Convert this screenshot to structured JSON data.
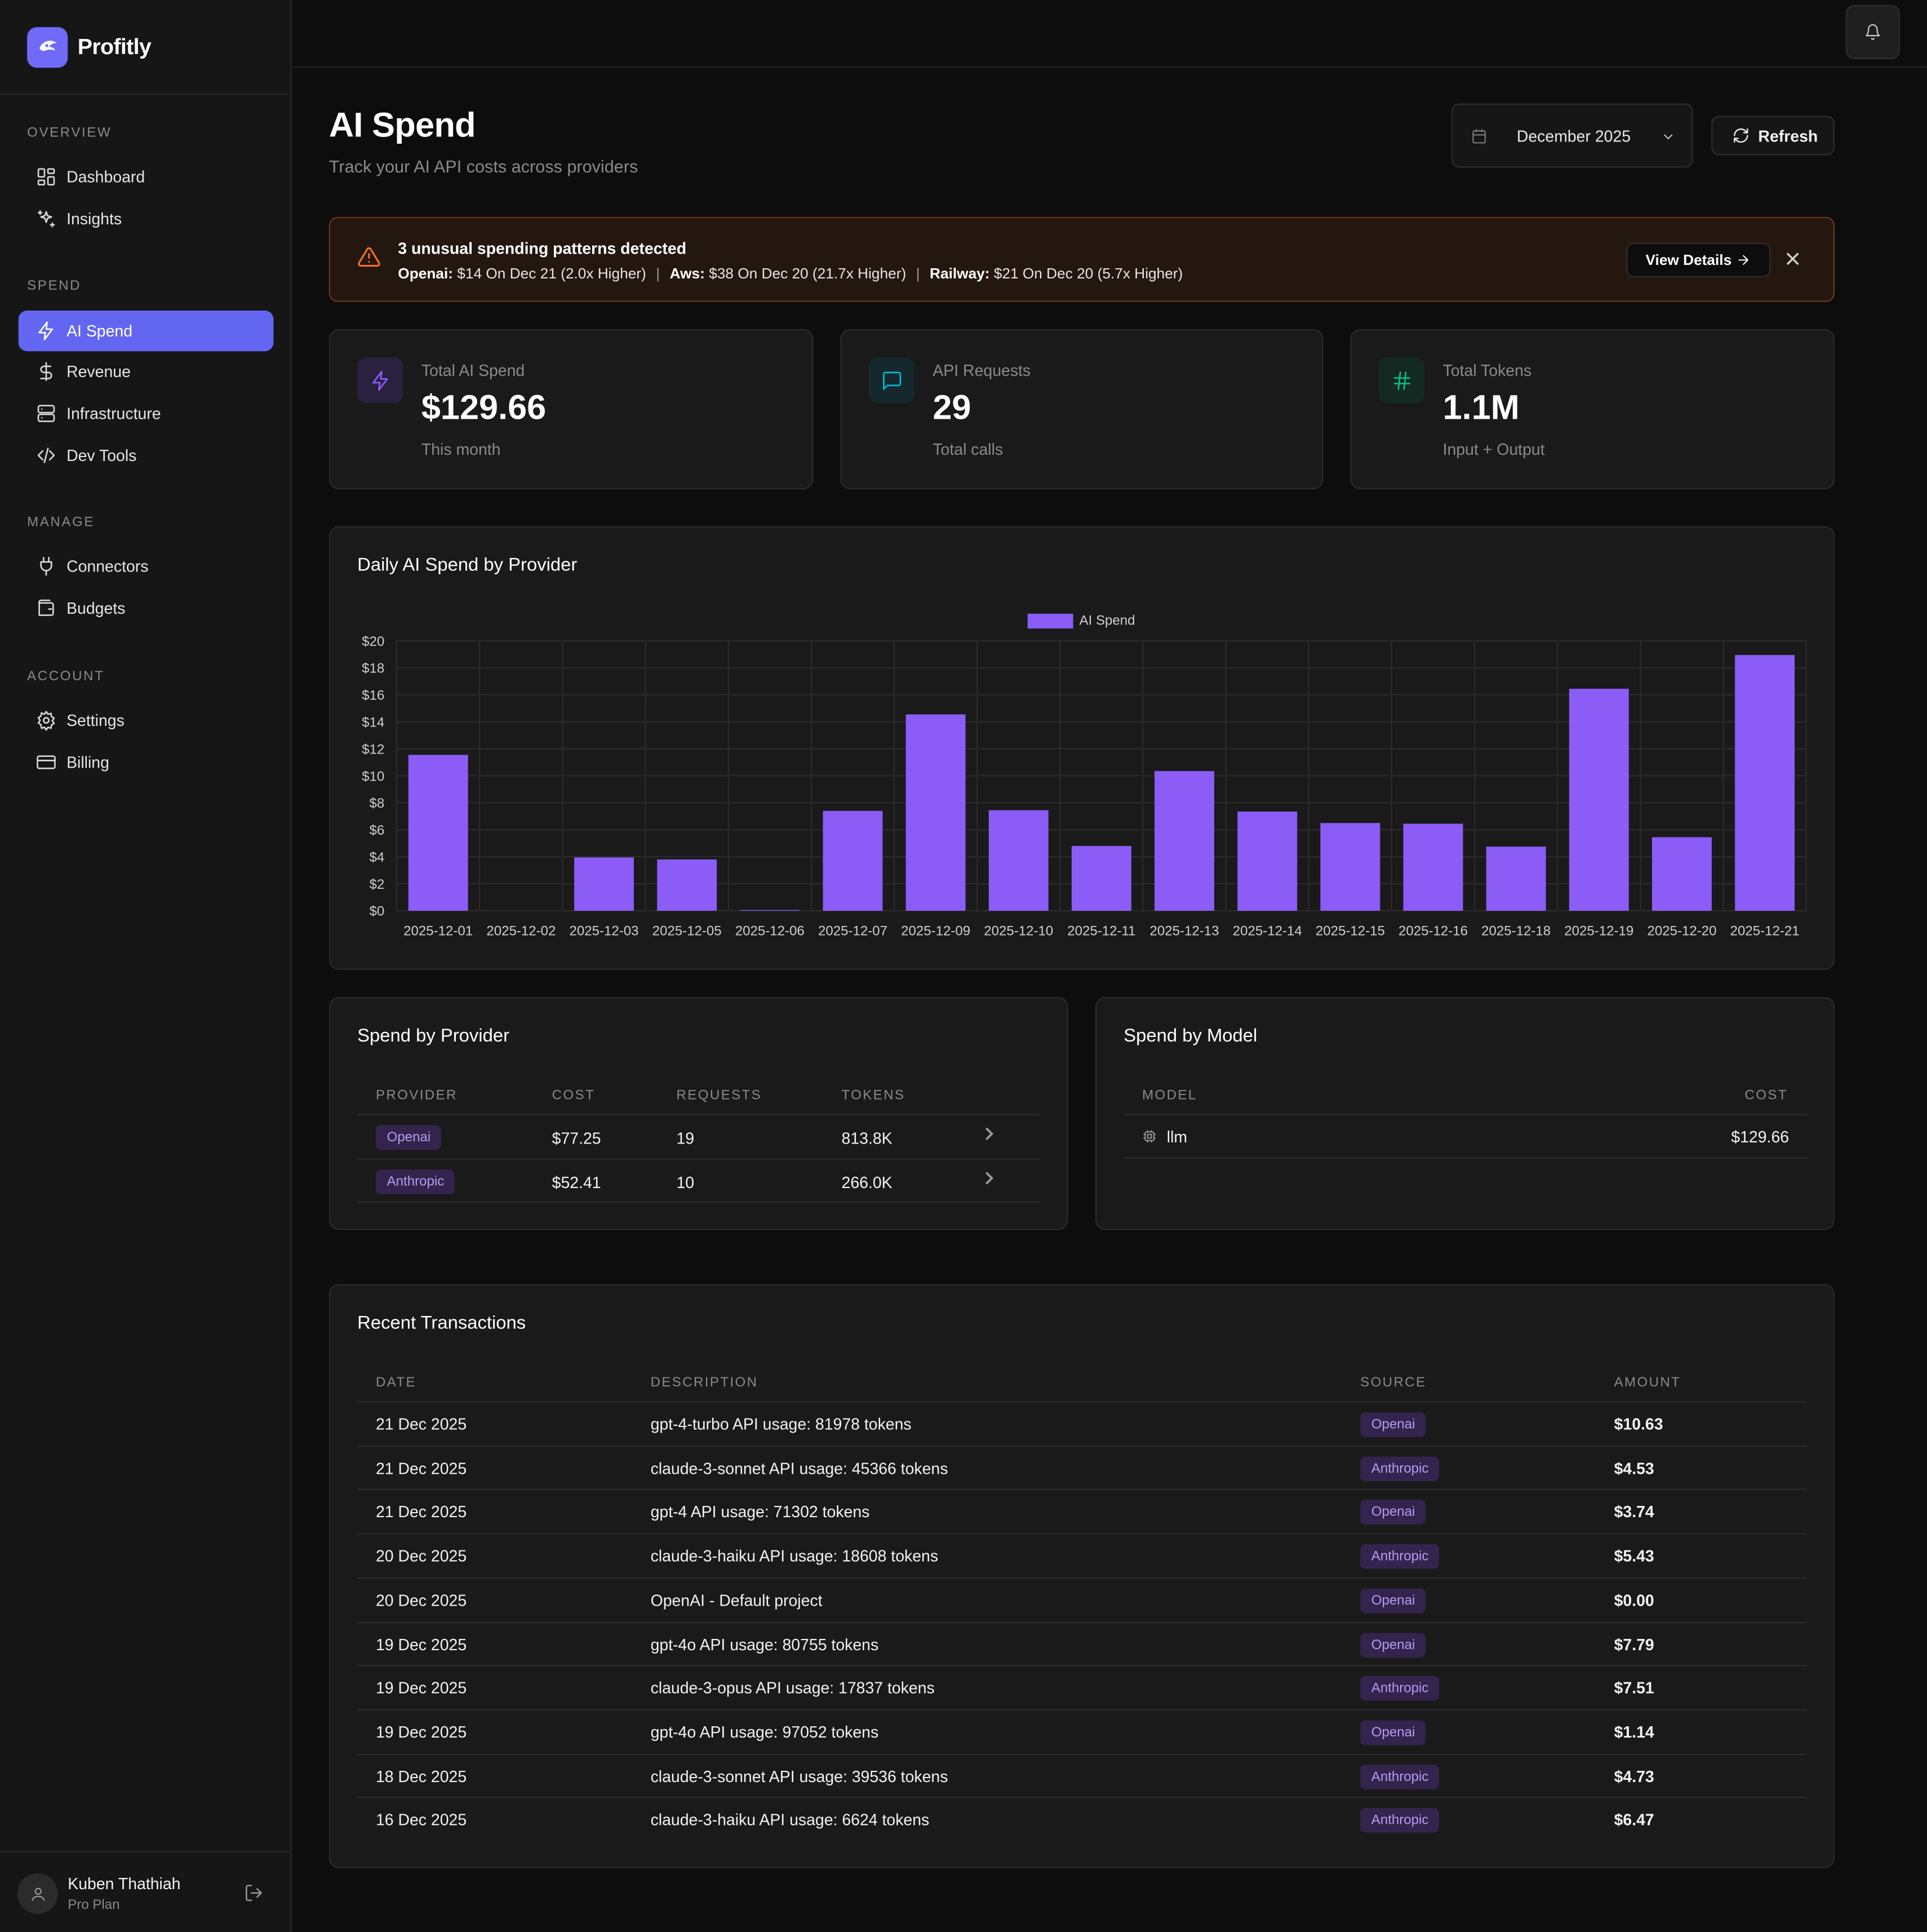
{
  "app": {
    "name": "Profitly"
  },
  "sidebar": {
    "sections": [
      {
        "label": "OVERVIEW",
        "items": [
          {
            "label": "Dashboard",
            "icon": "dashboard-icon"
          },
          {
            "label": "Insights",
            "icon": "sparkles-icon"
          }
        ]
      },
      {
        "label": "SPEND",
        "items": [
          {
            "label": "AI Spend",
            "icon": "zap-icon",
            "active": true
          },
          {
            "label": "Revenue",
            "icon": "dollar-icon"
          },
          {
            "label": "Infrastructure",
            "icon": "server-icon"
          },
          {
            "label": "Dev Tools",
            "icon": "code-icon"
          }
        ]
      },
      {
        "label": "MANAGE",
        "items": [
          {
            "label": "Connectors",
            "icon": "plug-icon"
          },
          {
            "label": "Budgets",
            "icon": "wallet-icon"
          }
        ]
      },
      {
        "label": "ACCOUNT",
        "items": [
          {
            "label": "Settings",
            "icon": "gear-icon"
          },
          {
            "label": "Billing",
            "icon": "credit-card-icon"
          }
        ]
      }
    ],
    "user": {
      "name": "Kuben Thathiah",
      "plan": "Pro Plan"
    }
  },
  "header": {
    "title": "AI Spend",
    "subtitle": "Track your AI API costs across providers",
    "month_selector": "December 2025",
    "refresh_label": "Refresh"
  },
  "alert": {
    "title": "3 unusual spending patterns detected",
    "items": [
      {
        "provider": "Openai:",
        "detail": "$14 On Dec 21 (2.0x Higher)"
      },
      {
        "provider": "Aws:",
        "detail": "$38 On Dec 20 (21.7x Higher)"
      },
      {
        "provider": "Railway:",
        "detail": "$21 On Dec 20 (5.7x Higher)"
      }
    ],
    "separator": "|",
    "action_label": "View Details",
    "accent": "#f97316"
  },
  "stats": [
    {
      "label": "Total AI Spend",
      "value": "$129.66",
      "note": "This month",
      "icon": "zap-icon",
      "color": "#8b5cf6"
    },
    {
      "label": "API Requests",
      "value": "29",
      "note": "Total calls",
      "icon": "message-icon",
      "color": "#06b6d4"
    },
    {
      "label": "Total Tokens",
      "value": "1.1M",
      "note": "Input + Output",
      "icon": "hash-icon",
      "color": "#10b981"
    }
  ],
  "daily_chart": {
    "title": "Daily AI Spend by Provider",
    "bar_color": "#8b5cf6"
  },
  "chart_data": {
    "type": "bar",
    "categories": [
      "2025-12-01",
      "2025-12-02",
      "2025-12-03",
      "2025-12-05",
      "2025-12-06",
      "2025-12-07",
      "2025-12-09",
      "2025-12-10",
      "2025-12-11",
      "2025-12-13",
      "2025-12-14",
      "2025-12-15",
      "2025-12-16",
      "2025-12-18",
      "2025-12-19",
      "2025-12-20",
      "2025-12-21"
    ],
    "series": [
      {
        "name": "AI Spend",
        "values": [
          11.55,
          0,
          3.95,
          3.8,
          0.05,
          7.4,
          14.55,
          7.45,
          4.8,
          10.35,
          7.35,
          6.5,
          6.45,
          4.75,
          16.45,
          5.45,
          18.95
        ]
      }
    ],
    "ylim": [
      0,
      20
    ],
    "yticks": [
      "$0",
      "$2",
      "$4",
      "$6",
      "$8",
      "$10",
      "$12",
      "$14",
      "$16",
      "$18",
      "$20"
    ],
    "grid": true,
    "legend": "top-center"
  },
  "provider_table": {
    "title": "Spend by Provider",
    "columns": [
      "PROVIDER",
      "COST",
      "REQUESTS",
      "TOKENS"
    ],
    "rows": [
      {
        "provider": "Openai",
        "cost": "$77.25",
        "requests": "19",
        "tokens": "813.8K"
      },
      {
        "provider": "Anthropic",
        "cost": "$52.41",
        "requests": "10",
        "tokens": "266.0K"
      }
    ]
  },
  "model_table": {
    "title": "Spend by Model",
    "columns": [
      "MODEL",
      "COST"
    ],
    "rows": [
      {
        "model": "llm",
        "cost": "$129.66"
      }
    ]
  },
  "transactions": {
    "title": "Recent Transactions",
    "columns": [
      "DATE",
      "DESCRIPTION",
      "SOURCE",
      "AMOUNT"
    ],
    "rows": [
      {
        "date": "21 Dec 2025",
        "description": "gpt-4-turbo API usage: 81978 tokens",
        "source": "Openai",
        "amount": "$10.63"
      },
      {
        "date": "21 Dec 2025",
        "description": "claude-3-sonnet API usage: 45366 tokens",
        "source": "Anthropic",
        "amount": "$4.53"
      },
      {
        "date": "21 Dec 2025",
        "description": "gpt-4 API usage: 71302 tokens",
        "source": "Openai",
        "amount": "$3.74"
      },
      {
        "date": "20 Dec 2025",
        "description": "claude-3-haiku API usage: 18608 tokens",
        "source": "Anthropic",
        "amount": "$5.43"
      },
      {
        "date": "20 Dec 2025",
        "description": "OpenAI - Default project",
        "source": "Openai",
        "amount": "$0.00"
      },
      {
        "date": "19 Dec 2025",
        "description": "gpt-4o API usage: 80755 tokens",
        "source": "Openai",
        "amount": "$7.79"
      },
      {
        "date": "19 Dec 2025",
        "description": "claude-3-opus API usage: 17837 tokens",
        "source": "Anthropic",
        "amount": "$7.51"
      },
      {
        "date": "19 Dec 2025",
        "description": "gpt-4o API usage: 97052 tokens",
        "source": "Openai",
        "amount": "$1.14"
      },
      {
        "date": "18 Dec 2025",
        "description": "claude-3-sonnet API usage: 39536 tokens",
        "source": "Anthropic",
        "amount": "$4.73"
      },
      {
        "date": "16 Dec 2025",
        "description": "claude-3-haiku API usage: 6624 tokens",
        "source": "Anthropic",
        "amount": "$6.47"
      }
    ]
  }
}
